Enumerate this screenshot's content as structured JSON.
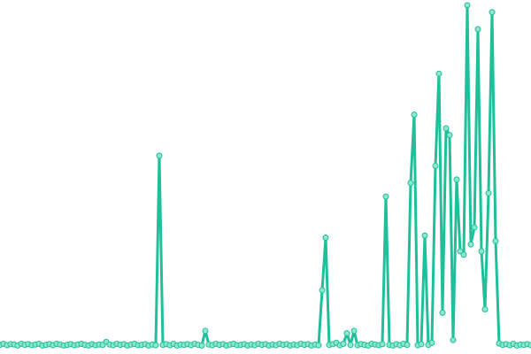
{
  "chart_data": {
    "type": "line",
    "color": "#1fbf9a",
    "marker_color": "#8ee6cf",
    "ylim": [
      0,
      100
    ],
    "values": [
      0.6,
      0.9,
      0.5,
      0.8,
      0.7,
      0.4,
      0.9,
      0.6,
      0.8,
      0.5,
      0.7,
      0.9,
      0.4,
      0.6,
      0.8,
      0.5,
      0.9,
      0.7,
      0.4,
      0.6,
      0.8,
      0.5,
      0.7,
      0.9,
      0.6,
      0.4,
      0.8,
      0.5,
      0.7,
      0.6,
      1.5,
      0.7,
      0.5,
      0.9,
      0.6,
      0.8,
      0.4,
      0.7,
      0.9,
      0.5,
      0.6,
      0.8,
      0.4,
      0.7,
      0.5,
      56,
      0.6,
      0.8,
      0.5,
      0.9,
      0.4,
      0.7,
      0.6,
      0.8,
      0.5,
      0.9,
      0.6,
      0.4,
      4.7,
      0.7,
      0.5,
      0.9,
      0.6,
      0.8,
      0.4,
      0.7,
      0.9,
      0.5,
      0.6,
      0.8,
      0.4,
      0.7,
      0.5,
      0.9,
      0.6,
      0.8,
      0.4,
      0.7,
      0.5,
      0.9,
      0.6,
      0.8,
      0.4,
      0.7,
      0.5,
      0.9,
      0.6,
      0.8,
      0.4,
      0.7,
      0.5,
      16.6,
      32,
      0.6,
      0.8,
      1.2,
      0.5,
      0.9,
      4,
      0.6,
      4.7,
      0.5,
      0.8,
      0.6,
      0.4,
      0.9,
      0.7,
      0.5,
      0.8,
      44,
      0.6,
      0.4,
      0.8,
      0.5,
      0.9,
      0.6,
      48,
      68,
      0.5,
      0.8,
      32.6,
      0.6,
      1.2,
      53,
      80,
      10,
      64,
      62,
      2,
      49,
      28,
      27,
      100,
      30,
      35,
      93,
      28,
      11,
      45,
      98,
      31,
      1,
      0.6,
      0.8,
      0.5,
      0.9,
      0.4,
      0.7,
      0.6,
      0.8,
      0.5
    ]
  }
}
